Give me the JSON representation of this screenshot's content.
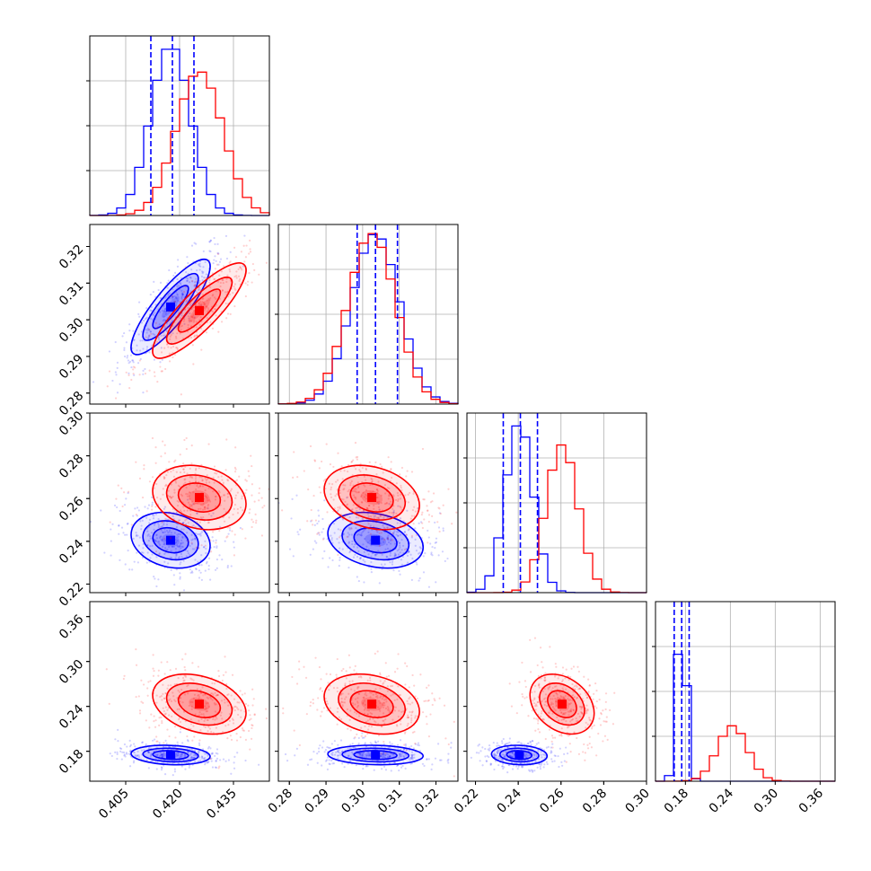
{
  "chart_data": {
    "type": "corner",
    "grid": true,
    "colors": {
      "blue": "#0000ff",
      "red": "#ff0000"
    },
    "series": [
      {
        "color": "#0000ff"
      },
      {
        "color": "#ff0000"
      }
    ],
    "parameters": [
      {
        "range": [
          0.395,
          0.445
        ],
        "ticks": [
          "0.405",
          "0.420",
          "0.435"
        ],
        "tick_values": [
          0.405,
          0.42,
          0.435
        ]
      },
      {
        "range": [
          0.277,
          0.326
        ],
        "ticks": [
          "0.28",
          "0.29",
          "0.30",
          "0.31",
          "0.32"
        ],
        "tick_values": [
          0.28,
          0.29,
          0.3,
          0.31,
          0.32
        ]
      },
      {
        "range": [
          0.216,
          0.3
        ],
        "ticks": [
          "0.22",
          "0.24",
          "0.26",
          "0.28",
          "0.30"
        ],
        "tick_values": [
          0.22,
          0.24,
          0.26,
          0.28,
          0.3
        ]
      },
      {
        "range": [
          0.14,
          0.38
        ],
        "ticks": [
          "0.18",
          "0.24",
          "0.30",
          "0.36"
        ],
        "tick_values": [
          0.18,
          0.24,
          0.3,
          0.36
        ]
      }
    ],
    "marginals": [
      {
        "blue": {
          "mean": 0.4175,
          "sd": 0.0055
        },
        "red": {
          "mean": 0.4255,
          "sd": 0.0065
        },
        "quantiles": [
          0.412,
          0.418,
          0.424
        ]
      },
      {
        "blue": {
          "mean": 0.3035,
          "sd": 0.0065
        },
        "red": {
          "mean": 0.3025,
          "sd": 0.0065
        },
        "quantiles": [
          0.2985,
          0.3035,
          0.3095
        ]
      },
      {
        "blue": {
          "mean": 0.2405,
          "sd": 0.0065
        },
        "red": {
          "mean": 0.2605,
          "sd": 0.0075
        },
        "quantiles": [
          0.233,
          0.241,
          0.249
        ]
      },
      {
        "blue": {
          "mean": 0.175,
          "sd": 0.0065
        },
        "red": {
          "mean": 0.243,
          "sd": 0.02
        },
        "quantiles": [
          0.165,
          0.175,
          0.185
        ]
      }
    ],
    "joint": [
      {
        "x": 0,
        "y": 1,
        "blue": {
          "center": [
            0.4175,
            0.3035
          ],
          "corr": 0.85
        },
        "red": {
          "center": [
            0.4255,
            0.3025
          ],
          "corr": 0.85
        }
      },
      {
        "x": 0,
        "y": 2,
        "blue": {
          "center": [
            0.4175,
            0.2405
          ],
          "corr": -0.2
        },
        "red": {
          "center": [
            0.4255,
            0.2605
          ],
          "corr": -0.2
        }
      },
      {
        "x": 1,
        "y": 2,
        "blue": {
          "center": [
            0.3035,
            0.2405
          ],
          "corr": -0.25
        },
        "red": {
          "center": [
            0.3025,
            0.2605
          ],
          "corr": -0.25
        }
      },
      {
        "x": 0,
        "y": 3,
        "blue": {
          "center": [
            0.4175,
            0.175
          ],
          "corr": -0.15
        },
        "red": {
          "center": [
            0.4255,
            0.243
          ],
          "corr": -0.3
        }
      },
      {
        "x": 1,
        "y": 3,
        "blue": {
          "center": [
            0.3035,
            0.175
          ],
          "corr": -0.1
        },
        "red": {
          "center": [
            0.3025,
            0.243
          ],
          "corr": -0.25
        }
      },
      {
        "x": 2,
        "y": 3,
        "blue": {
          "center": [
            0.2405,
            0.175
          ],
          "corr": -0.1
        },
        "red": {
          "center": [
            0.2605,
            0.243
          ],
          "corr": -0.3
        }
      }
    ]
  }
}
